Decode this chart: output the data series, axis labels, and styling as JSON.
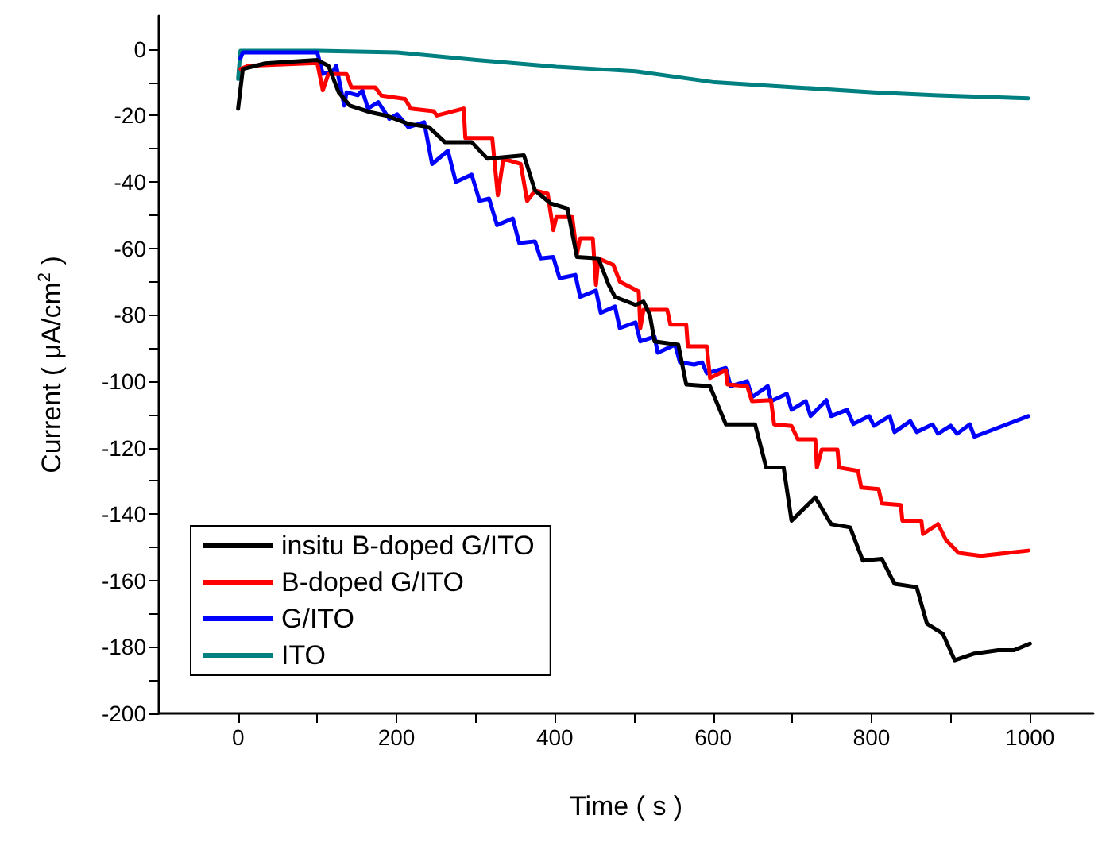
{
  "chart_data": {
    "type": "line",
    "xlabel": "Time ( s )",
    "ylabel": "Current ( μA/cm$^{2}$ )",
    "xlim": [
      -100,
      1080
    ],
    "ylim": [
      -200,
      10
    ],
    "xticks": [
      0,
      {
        "value": 100,
        "label": null
      },
      200,
      {
        "value": 300,
        "label": null
      },
      400,
      {
        "value": 500,
        "label": null
      },
      600,
      {
        "value": 700,
        "label": null
      },
      800,
      {
        "value": 900,
        "label": null
      },
      1000
    ],
    "yticks": [
      -200,
      {
        "value": -190,
        "label": null
      },
      -180,
      {
        "value": -170,
        "label": null
      },
      -160,
      {
        "value": -150,
        "label": null
      },
      -140,
      {
        "value": -130,
        "label": null
      },
      -120,
      {
        "value": -110,
        "label": null
      },
      -100,
      {
        "value": -90,
        "label": null
      },
      -80,
      {
        "value": -70,
        "label": null
      },
      -60,
      {
        "value": -50,
        "label": null
      },
      -40,
      {
        "value": -30,
        "label": null
      },
      -20,
      {
        "value": -10,
        "label": null
      },
      0
    ],
    "grid": false,
    "legend": "bottom left",
    "marker": "none",
    "line_style": "solid",
    "series": [
      {
        "name": "insitu B-doped G/ITO",
        "color": "#000000",
        "x": [
          0,
          6,
          34,
          100,
          114,
          127,
          141,
          167,
          187,
          215,
          241,
          261,
          295,
          315,
          361,
          375,
          395,
          416,
          428,
          455,
          468,
          476,
          502,
          512,
          520,
          526,
          556,
          566,
          596,
          616,
          653,
          667,
          689,
          699,
          729,
          749,
          773,
          789,
          813,
          829,
          857,
          870,
          890,
          905,
          930,
          960,
          980,
          1000
        ],
        "values": [
          -18,
          -6,
          -4.3,
          -3.3,
          -5,
          -13,
          -17,
          -19,
          -20,
          -22.5,
          -23.5,
          -28,
          -28,
          -33,
          -32,
          -42.6,
          -46.5,
          -48,
          -62.6,
          -63,
          -71,
          -74.6,
          -77,
          -76,
          -80,
          -88,
          -89,
          -101,
          -101.5,
          -113,
          -113,
          -126,
          -126,
          -142,
          -135,
          -143,
          -144,
          -154,
          -153.5,
          -161,
          -162,
          -173,
          -176,
          -184,
          -182,
          -181,
          -181,
          -179
        ]
      },
      {
        "name": "B-doped G/ITO",
        "color": "#ff0000",
        "x": [
          3,
          13,
          100,
          107,
          114,
          137,
          143,
          173,
          181,
          211,
          218,
          247,
          251,
          285,
          287,
          321,
          328,
          335,
          357,
          365,
          375,
          391,
          398,
          402,
          422,
          428,
          432,
          448,
          452,
          455,
          474,
          482,
          506,
          508,
          512,
          542,
          546,
          566,
          568,
          592,
          596,
          616,
          618,
          643,
          649,
          673,
          677,
          699,
          707,
          729,
          731,
          737,
          757,
          759,
          783,
          787,
          809,
          813,
          837,
          839,
          863,
          865,
          884,
          894,
          910,
          938,
          998
        ],
        "values": [
          -6,
          -5,
          -4.2,
          -12.4,
          -7.5,
          -7.5,
          -11.5,
          -11.5,
          -14,
          -15,
          -17.9,
          -18.7,
          -20,
          -17.9,
          -26.8,
          -26.8,
          -44,
          -33,
          -34.6,
          -45.7,
          -42.6,
          -43.5,
          -54.5,
          -50.6,
          -50.6,
          -61.7,
          -57,
          -57,
          -71,
          -63,
          -65,
          -70,
          -73,
          -84,
          -78.5,
          -78.5,
          -83,
          -83,
          -89.5,
          -89.5,
          -99,
          -96.7,
          -101,
          -101.5,
          -106,
          -105.7,
          -113,
          -113.5,
          -117.5,
          -117.5,
          -126,
          -120.6,
          -120.6,
          -126,
          -127,
          -132,
          -132.5,
          -136.8,
          -137.3,
          -142,
          -142,
          -146,
          -143,
          -147.8,
          -151.7,
          -152.6,
          -151
        ]
      },
      {
        "name": "G/ITO",
        "color": "#0000ff",
        "x": [
          3,
          6,
          100,
          107,
          120,
          124,
          134,
          137,
          151,
          157,
          164,
          177,
          191,
          201,
          215,
          235,
          245,
          265,
          275,
          295,
          305,
          317,
          327,
          347,
          355,
          375,
          382,
          398,
          406,
          426,
          432,
          452,
          458,
          476,
          482,
          502,
          508,
          526,
          530,
          552,
          558,
          576,
          586,
          592,
          616,
          622,
          643,
          649,
          669,
          673,
          693,
          699,
          717,
          723,
          743,
          749,
          769,
          777,
          797,
          803,
          823,
          829,
          849,
          857,
          877,
          884,
          900,
          908,
          924,
          930,
          998
        ],
        "values": [
          -2.8,
          -1,
          -1,
          -7.5,
          -6.7,
          -5,
          -17,
          -13,
          -13.9,
          -12.4,
          -17.9,
          -16,
          -21,
          -19.6,
          -23.5,
          -22,
          -34.6,
          -30.6,
          -40,
          -37.8,
          -45.7,
          -45,
          -53,
          -51,
          -58.4,
          -57.9,
          -63,
          -62.6,
          -69,
          -68,
          -74.6,
          -72.7,
          -79.4,
          -77.5,
          -84,
          -82.3,
          -88,
          -86.6,
          -91.4,
          -89,
          -94.3,
          -95,
          -94.3,
          -97.6,
          -96,
          -101.5,
          -100,
          -104.8,
          -101.5,
          -106,
          -103.8,
          -108.6,
          -106,
          -110.5,
          -105.7,
          -110.5,
          -108.6,
          -112.9,
          -110.5,
          -113.4,
          -110.5,
          -115.3,
          -112,
          -115.3,
          -113,
          -115.8,
          -113.4,
          -115.8,
          -113,
          -116.7,
          -110.5
        ]
      },
      {
        "name": "ITO",
        "color": "#008080",
        "x": [
          0,
          3,
          100,
          201,
          301,
          402,
          502,
          602,
          703,
          803,
          884,
          998
        ],
        "values": [
          -9,
          -0.5,
          -0.5,
          -1,
          -3.3,
          -5.3,
          -6.7,
          -10,
          -11.5,
          -13,
          -13.9,
          -14.8
        ]
      }
    ]
  }
}
